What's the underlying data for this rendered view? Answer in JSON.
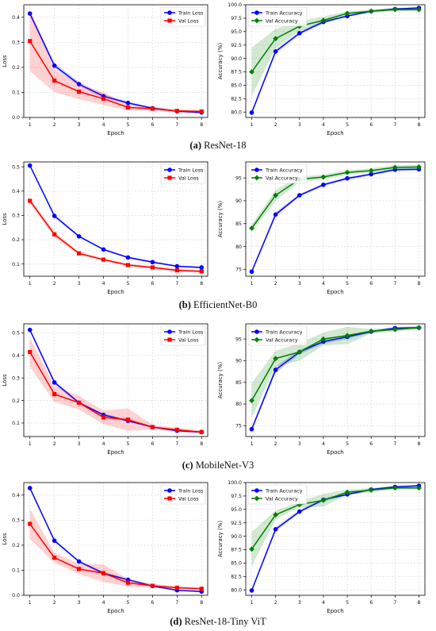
{
  "chart_data": [
    {
      "panel": "a",
      "caption": {
        "tag": "(a)",
        "text": "ResNet-18"
      },
      "charts": [
        {
          "type": "line",
          "xlabel": "Epoch",
          "ylabel": "Loss",
          "x": [
            1,
            2,
            3,
            4,
            5,
            6,
            7,
            8
          ],
          "ylim": [
            0,
            0.45
          ],
          "yticks": [
            "0.0",
            "0.1",
            "0.2",
            "0.3",
            "0.4"
          ],
          "legend": "top-right",
          "grid": true,
          "series": [
            {
              "name": "Train Loss",
              "color": "#0000ff",
              "marker": "circle",
              "values": [
                0.415,
                0.207,
                0.133,
                0.085,
                0.058,
                0.037,
                0.025,
                0.02
              ],
              "band": [
                0.01,
                0.01,
                0.008,
                0.008,
                0.005,
                0.004,
                0.003,
                0.003
              ]
            },
            {
              "name": "Val Loss",
              "color": "#ff0000",
              "marker": "square",
              "values": [
                0.305,
                0.147,
                0.103,
                0.075,
                0.04,
                0.035,
                0.026,
                0.024
              ],
              "band": [
                0.12,
                0.045,
                0.03,
                0.025,
                0.012,
                0.008,
                0.006,
                0.006
              ]
            }
          ]
        },
        {
          "type": "line",
          "xlabel": "Epoch",
          "ylabel": "Accuracy (%)",
          "x": [
            1,
            2,
            3,
            4,
            5,
            6,
            7,
            8
          ],
          "ylim": [
            79,
            100
          ],
          "yticks": [
            "80.0",
            "82.5",
            "85.0",
            "87.5",
            "90.0",
            "92.5",
            "95.0",
            "97.5",
            "100.0"
          ],
          "legend": "top-left",
          "grid": true,
          "series": [
            {
              "name": "Train Accuracy",
              "color": "#0000ff",
              "marker": "circle",
              "values": [
                79.9,
                91.3,
                94.7,
                96.8,
                97.9,
                98.8,
                99.2,
                99.4
              ],
              "band": [
                0.2,
                0.4,
                0.3,
                0.3,
                0.2,
                0.2,
                0.2,
                0.2
              ]
            },
            {
              "name": "Val Accuracy",
              "color": "#008000",
              "marker": "diamond",
              "values": [
                87.5,
                93.7,
                96.0,
                97.1,
                98.4,
                98.8,
                99.1,
                99.1
              ],
              "band": [
                4.5,
                1.8,
                0.9,
                0.7,
                0.4,
                0.3,
                0.3,
                0.3
              ]
            }
          ]
        }
      ]
    },
    {
      "panel": "b",
      "caption": {
        "tag": "(b)",
        "text": "EfficientNet-B0"
      },
      "charts": [
        {
          "type": "line",
          "xlabel": "Epoch",
          "ylabel": "Loss",
          "x": [
            1,
            2,
            3,
            4,
            5,
            6,
            7,
            8
          ],
          "ylim": [
            0.05,
            0.52
          ],
          "yticks": [
            "0.1",
            "0.2",
            "0.3",
            "0.4",
            "0.5"
          ],
          "legend": "top-right",
          "grid": true,
          "series": [
            {
              "name": "Train Loss",
              "color": "#0000ff",
              "marker": "circle",
              "values": [
                0.505,
                0.298,
                0.214,
                0.16,
                0.127,
                0.108,
                0.091,
                0.086
              ],
              "band": [
                0.004,
                0.006,
                0.004,
                0.004,
                0.004,
                0.004,
                0.004,
                0.004
              ]
            },
            {
              "name": "Val Loss",
              "color": "#ff0000",
              "marker": "square",
              "values": [
                0.36,
                0.222,
                0.144,
                0.118,
                0.096,
                0.086,
                0.074,
                0.07
              ],
              "band": [
                0.01,
                0.012,
                0.006,
                0.006,
                0.006,
                0.006,
                0.006,
                0.006
              ]
            }
          ]
        },
        {
          "type": "line",
          "xlabel": "Epoch",
          "ylabel": "Accuracy (%)",
          "x": [
            1,
            2,
            3,
            4,
            5,
            6,
            7,
            8
          ],
          "ylim": [
            73.5,
            98.5
          ],
          "yticks": [
            "75",
            "80",
            "85",
            "90",
            "95"
          ],
          "legend": "top-left",
          "grid": true,
          "series": [
            {
              "name": "Train Accuracy",
              "color": "#0000ff",
              "marker": "circle",
              "values": [
                74.5,
                87.0,
                91.2,
                93.5,
                94.9,
                95.8,
                96.8,
                96.9
              ],
              "band": [
                0.3,
                0.5,
                0.3,
                0.3,
                0.3,
                0.3,
                0.3,
                0.3
              ]
            },
            {
              "name": "Val Accuracy",
              "color": "#008000",
              "marker": "diamond",
              "values": [
                84.0,
                91.2,
                94.7,
                95.2,
                96.2,
                96.6,
                97.3,
                97.4
              ],
              "band": [
                0.8,
                1.2,
                0.6,
                0.5,
                0.5,
                0.5,
                0.5,
                0.5
              ]
            }
          ]
        }
      ]
    },
    {
      "panel": "c",
      "caption": {
        "tag": "(c)",
        "text": "MobileNet-V3"
      },
      "charts": [
        {
          "type": "line",
          "xlabel": "Epoch",
          "ylabel": "Loss",
          "x": [
            1,
            2,
            3,
            4,
            5,
            6,
            7,
            8
          ],
          "ylim": [
            0.04,
            0.54
          ],
          "yticks": [
            "0.1",
            "0.2",
            "0.3",
            "0.4",
            "0.5"
          ],
          "legend": "top-right",
          "grid": true,
          "series": [
            {
              "name": "Train Loss",
              "color": "#0000ff",
              "marker": "circle",
              "values": [
                0.513,
                0.28,
                0.19,
                0.136,
                0.11,
                0.082,
                0.066,
                0.06
              ],
              "band": [
                0.005,
                0.01,
                0.006,
                0.006,
                0.006,
                0.004,
                0.004,
                0.004
              ]
            },
            {
              "name": "Val Loss",
              "color": "#ff0000",
              "marker": "square",
              "values": [
                0.415,
                0.228,
                0.19,
                0.125,
                0.115,
                0.082,
                0.07,
                0.06
              ],
              "band": [
                0.065,
                0.035,
                0.03,
                0.03,
                0.05,
                0.01,
                0.01,
                0.006
              ]
            }
          ]
        },
        {
          "type": "line",
          "xlabel": "Epoch",
          "ylabel": "Accuracy (%)",
          "x": [
            1,
            2,
            3,
            4,
            5,
            6,
            7,
            8
          ],
          "ylim": [
            72.5,
            98.5
          ],
          "yticks": [
            "75",
            "80",
            "85",
            "90",
            "95"
          ],
          "legend": "top-left",
          "grid": true,
          "series": [
            {
              "name": "Train Accuracy",
              "color": "#0000ff",
              "marker": "circle",
              "values": [
                74.2,
                87.9,
                92.0,
                94.4,
                95.5,
                96.7,
                97.5,
                97.6
              ],
              "band": [
                0.3,
                0.8,
                0.5,
                0.5,
                0.5,
                0.3,
                0.3,
                0.3
              ]
            },
            {
              "name": "Val Accuracy",
              "color": "#008000",
              "marker": "diamond",
              "values": [
                80.8,
                90.5,
                92.0,
                95.0,
                95.8,
                96.8,
                97.2,
                97.6
              ],
              "band": [
                4.0,
                1.8,
                2.0,
                1.5,
                2.0,
                0.5,
                0.5,
                0.3
              ]
            }
          ]
        }
      ]
    },
    {
      "panel": "d",
      "caption": {
        "tag": "(d)",
        "text": "ResNet-18-Tiny ViT"
      },
      "charts": [
        {
          "type": "line",
          "xlabel": "Epoch",
          "ylabel": "Loss",
          "x": [
            1,
            2,
            3,
            4,
            5,
            6,
            7,
            8
          ],
          "ylim": [
            0,
            0.45
          ],
          "yticks": [
            "0.0",
            "0.1",
            "0.2",
            "0.3",
            "0.4"
          ],
          "legend": "top-right",
          "grid": true,
          "series": [
            {
              "name": "Train Loss",
              "color": "#0000ff",
              "marker": "circle",
              "values": [
                0.428,
                0.218,
                0.135,
                0.088,
                0.062,
                0.037,
                0.02,
                0.015
              ],
              "band": [
                0.004,
                0.006,
                0.005,
                0.005,
                0.004,
                0.004,
                0.003,
                0.003
              ]
            },
            {
              "name": "Val Loss",
              "color": "#ff0000",
              "marker": "square",
              "values": [
                0.285,
                0.15,
                0.105,
                0.088,
                0.05,
                0.038,
                0.03,
                0.026
              ],
              "band": [
                0.06,
                0.02,
                0.02,
                0.035,
                0.015,
                0.008,
                0.006,
                0.006
              ]
            }
          ]
        },
        {
          "type": "line",
          "xlabel": "Epoch",
          "ylabel": "Accuracy (%)",
          "x": [
            1,
            2,
            3,
            4,
            5,
            6,
            7,
            8
          ],
          "ylim": [
            79,
            100
          ],
          "yticks": [
            "80.0",
            "82.5",
            "85.0",
            "87.5",
            "90.0",
            "92.5",
            "95.0",
            "97.5",
            "100.0"
          ],
          "legend": "top-left",
          "grid": true,
          "series": [
            {
              "name": "Train Accuracy",
              "color": "#0000ff",
              "marker": "circle",
              "values": [
                79.9,
                91.3,
                94.6,
                96.8,
                97.8,
                98.7,
                99.2,
                99.4
              ],
              "band": [
                0.2,
                0.4,
                0.3,
                0.3,
                0.2,
                0.2,
                0.2,
                0.2
              ]
            },
            {
              "name": "Val Accuracy",
              "color": "#008000",
              "marker": "diamond",
              "values": [
                87.6,
                94.0,
                95.9,
                96.7,
                98.2,
                98.6,
                99.0,
                99.0
              ],
              "band": [
                3.2,
                0.8,
                0.5,
                1.2,
                0.5,
                0.4,
                0.3,
                0.3
              ]
            }
          ]
        }
      ]
    }
  ]
}
